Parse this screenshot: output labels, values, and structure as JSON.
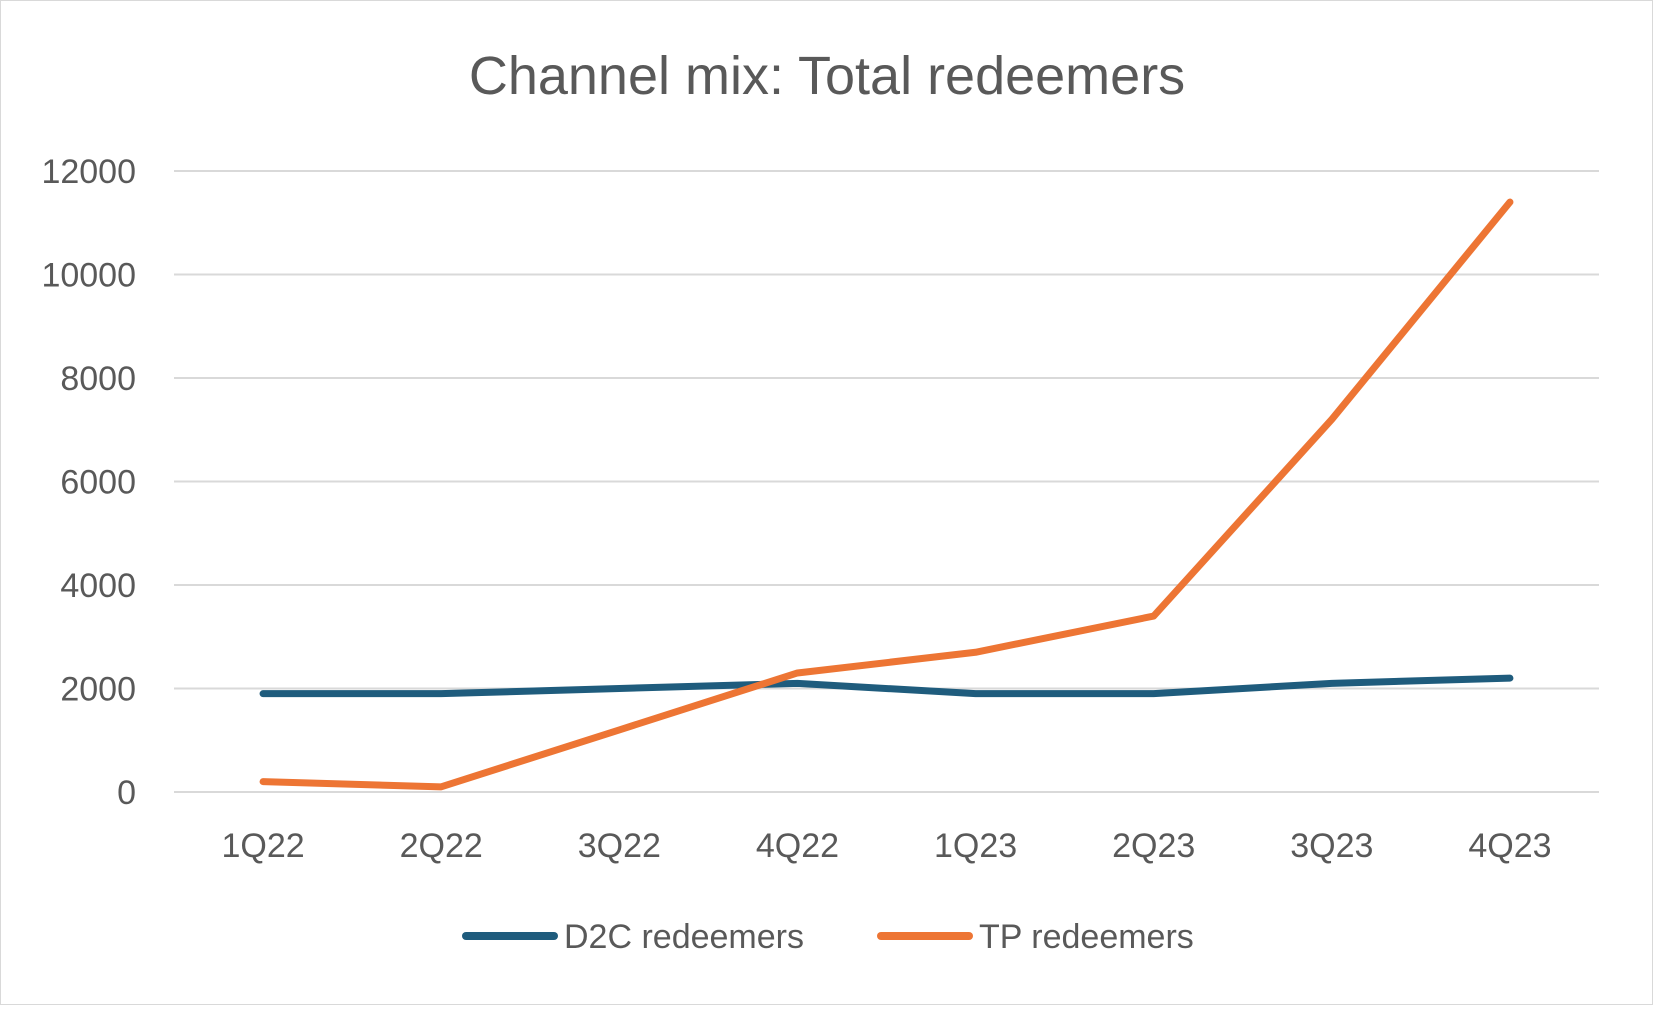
{
  "chart_data": {
    "type": "line",
    "title": "Channel mix: Total redeemers",
    "xlabel": "",
    "ylabel": "",
    "categories": [
      "1Q22",
      "2Q22",
      "3Q22",
      "4Q22",
      "1Q23",
      "2Q23",
      "3Q23",
      "4Q23"
    ],
    "ylim": [
      0,
      12000
    ],
    "yticks": [
      "0",
      "2000",
      "4000",
      "6000",
      "8000",
      "10000",
      "12000"
    ],
    "grid": true,
    "legend_position": "bottom",
    "series": [
      {
        "name": "D2C redeemers",
        "color": "#1f5c7d",
        "values": [
          1900,
          1900,
          2000,
          2100,
          1900,
          1900,
          2100,
          2200
        ]
      },
      {
        "name": "TP redeemers",
        "color": "#ed7534",
        "values": [
          200,
          100,
          1200,
          2300,
          2700,
          3400,
          7200,
          11400
        ]
      }
    ]
  }
}
